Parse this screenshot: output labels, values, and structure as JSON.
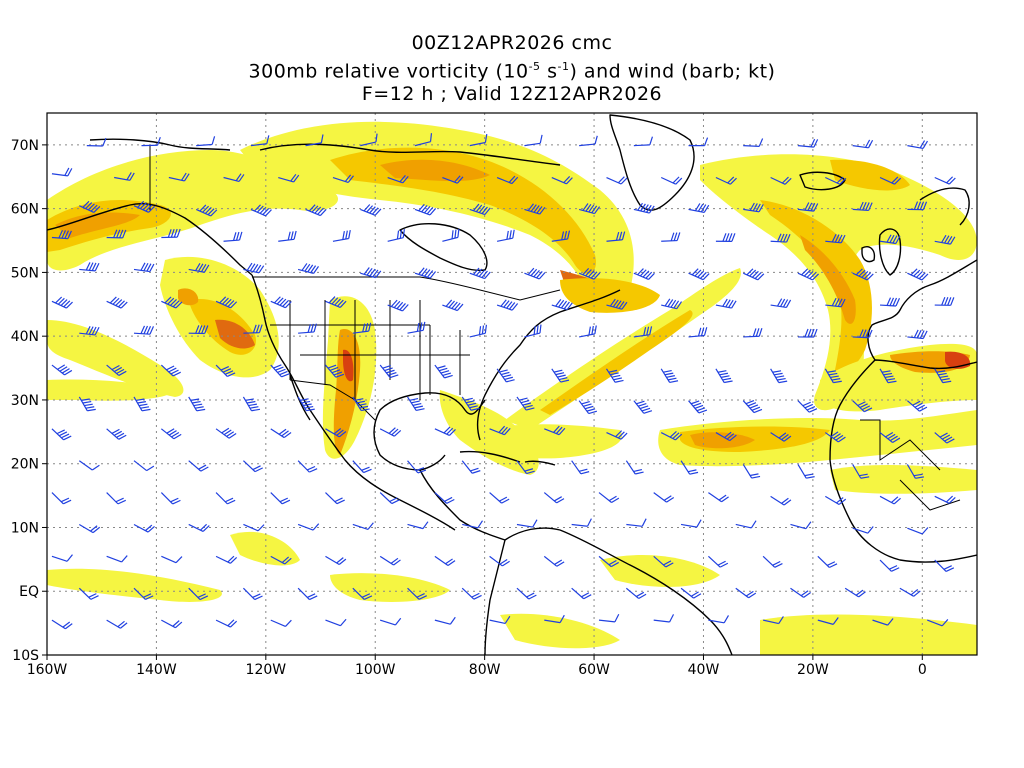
{
  "title": {
    "line1": "00Z12APR2026 cmc",
    "line2_prefix": "300mb relative vorticity (10",
    "line2_exp1": "-5",
    "line2_mid": " s",
    "line2_exp2": "-1",
    "line2_suffix": ") and wind (barb; kt)",
    "line3": "F=12 h ; Valid 12Z12APR2026"
  },
  "axes": {
    "lon_labels": [
      "160W",
      "140W",
      "120W",
      "100W",
      "80W",
      "60W",
      "40W",
      "20W",
      "0"
    ],
    "lon_values": [
      -160,
      -140,
      -120,
      -100,
      -80,
      -60,
      -40,
      -20,
      0
    ],
    "lat_labels": [
      "70N",
      "60N",
      "50N",
      "40N",
      "30N",
      "20N",
      "10N",
      "EQ",
      "10S"
    ],
    "lat_values": [
      70,
      60,
      50,
      40,
      30,
      20,
      10,
      0,
      -10
    ],
    "lon_range": [
      -160,
      10
    ],
    "lat_range": [
      -10,
      75
    ],
    "grid": "dotted"
  },
  "colors": {
    "shade_light": "#f5f542",
    "shade_yellow": "#f5e600",
    "shade_gold": "#f5c800",
    "shade_orange": "#f0a000",
    "shade_dark": "#e06a10",
    "shade_red": "#d84010",
    "barb": "#2040e0",
    "coast": "#000000"
  }
}
